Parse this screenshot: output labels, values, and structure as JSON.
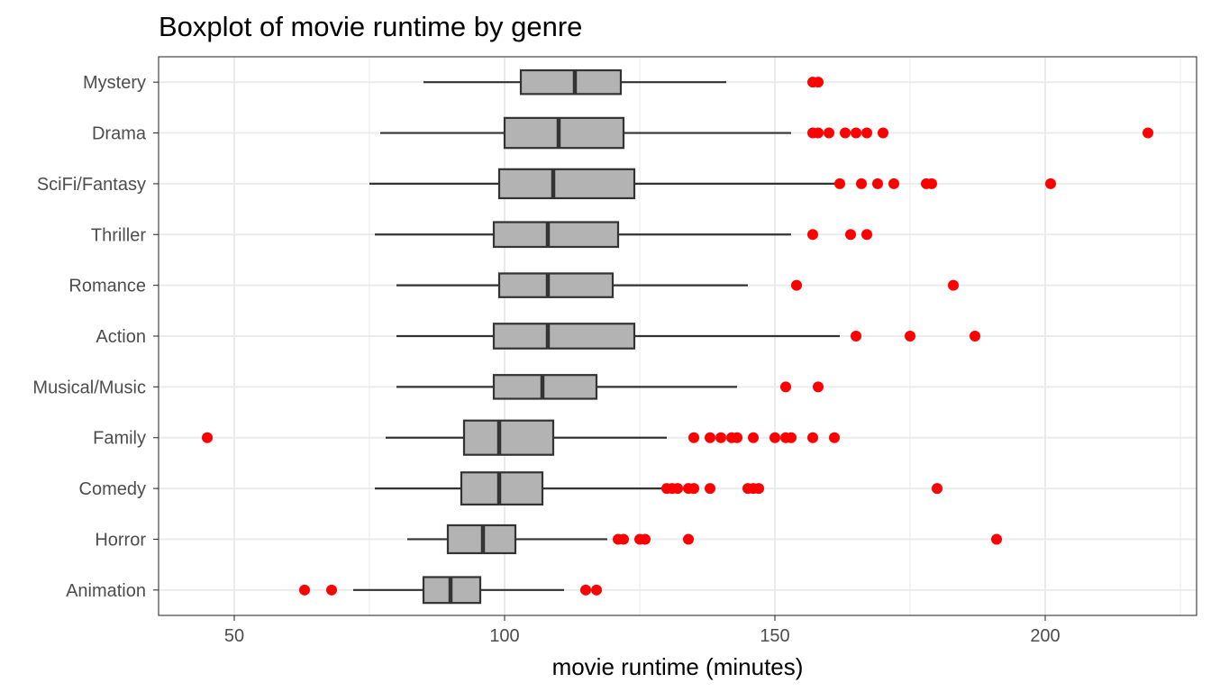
{
  "chart_data": {
    "type": "boxplot",
    "title": "Boxplot of movie runtime by genre",
    "xlabel": "movie runtime (minutes)",
    "ylabel": "",
    "xlim": [
      36,
      228
    ],
    "x_ticks": [
      "50",
      "100",
      "150",
      "200"
    ],
    "x_tick_values": [
      50,
      100,
      150,
      200
    ],
    "grid": true,
    "orientation": "horizontal",
    "colors": {
      "box_fill": "#b3b3b3",
      "box_stroke": "#333333",
      "outlier": "#ff0000",
      "grid": "#ebebeb",
      "panel_border": "#333333"
    },
    "series": [
      {
        "name": "Mystery",
        "min": 85,
        "q1": 103,
        "median": 113,
        "q3": 121.5,
        "max": 141,
        "outliers": [
          157,
          158
        ]
      },
      {
        "name": "Drama",
        "min": 77,
        "q1": 100,
        "median": 110,
        "q3": 122,
        "max": 153,
        "outliers": [
          157,
          158,
          160,
          163,
          165,
          167,
          170,
          219
        ]
      },
      {
        "name": "SciFi/Fantasy",
        "min": 75,
        "q1": 99,
        "median": 109,
        "q3": 124,
        "max": 162,
        "outliers": [
          162,
          166,
          169,
          172,
          178,
          179,
          201
        ]
      },
      {
        "name": "Thriller",
        "min": 76,
        "q1": 98,
        "median": 108,
        "q3": 121,
        "max": 153,
        "outliers": [
          157,
          164,
          167
        ]
      },
      {
        "name": "Romance",
        "min": 80,
        "q1": 99,
        "median": 108,
        "q3": 120,
        "max": 145,
        "outliers": [
          154,
          183
        ]
      },
      {
        "name": "Action",
        "min": 80,
        "q1": 98,
        "median": 108,
        "q3": 124,
        "max": 162,
        "outliers": [
          165,
          175,
          187
        ]
      },
      {
        "name": "Musical/Music",
        "min": 80,
        "q1": 98,
        "median": 107,
        "q3": 117,
        "max": 143,
        "outliers": [
          152,
          158
        ]
      },
      {
        "name": "Family",
        "min": 78,
        "q1": 92.5,
        "median": 99,
        "q3": 109,
        "max": 130,
        "outliers": [
          45,
          135,
          138,
          140,
          142,
          143,
          146,
          150,
          152,
          153,
          157,
          161
        ]
      },
      {
        "name": "Comedy",
        "min": 76,
        "q1": 92,
        "median": 99,
        "q3": 107,
        "max": 130,
        "outliers": [
          130,
          131,
          132,
          134,
          135,
          138,
          145,
          146,
          147,
          180
        ]
      },
      {
        "name": "Horror",
        "min": 82,
        "q1": 89.5,
        "median": 96,
        "q3": 102,
        "max": 119,
        "outliers": [
          121,
          122,
          125,
          126,
          134,
          191
        ]
      },
      {
        "name": "Animation",
        "min": 72,
        "q1": 85,
        "median": 90,
        "q3": 95.5,
        "max": 111,
        "outliers": [
          63,
          68,
          115,
          117
        ]
      }
    ]
  }
}
